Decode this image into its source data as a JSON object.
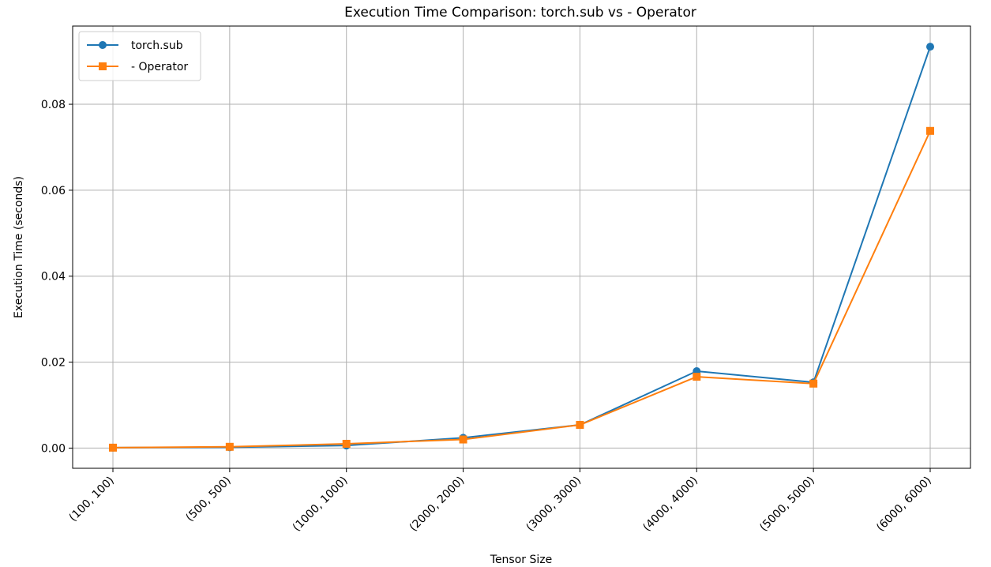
{
  "chart_data": {
    "type": "line",
    "title": "Execution Time Comparison: torch.sub vs - Operator",
    "xlabel": "Tensor Size",
    "ylabel": "Execution Time (seconds)",
    "categories": [
      "(100, 100)",
      "(500, 500)",
      "(1000, 1000)",
      "(2000, 2000)",
      "(3000, 3000)",
      "(4000, 4000)",
      "(5000, 5000)",
      "(6000, 6000)"
    ],
    "yticks": [
      "0.00",
      "0.02",
      "0.04",
      "0.06",
      "0.08"
    ],
    "ylim": [
      -0.0047,
      0.0982
    ],
    "grid": true,
    "legend_position": "top-left",
    "series": [
      {
        "name": "torch.sub",
        "marker": "circle",
        "color": "#1f77b4",
        "values": [
          0.0001,
          0.0002,
          0.0006,
          0.0024,
          0.0054,
          0.0179,
          0.0153,
          0.0934
        ]
      },
      {
        "name": "- Operator",
        "marker": "square",
        "color": "#ff7f0e",
        "values": [
          0.0001,
          0.0003,
          0.001,
          0.002,
          0.0054,
          0.0166,
          0.015,
          0.0738
        ]
      }
    ]
  }
}
